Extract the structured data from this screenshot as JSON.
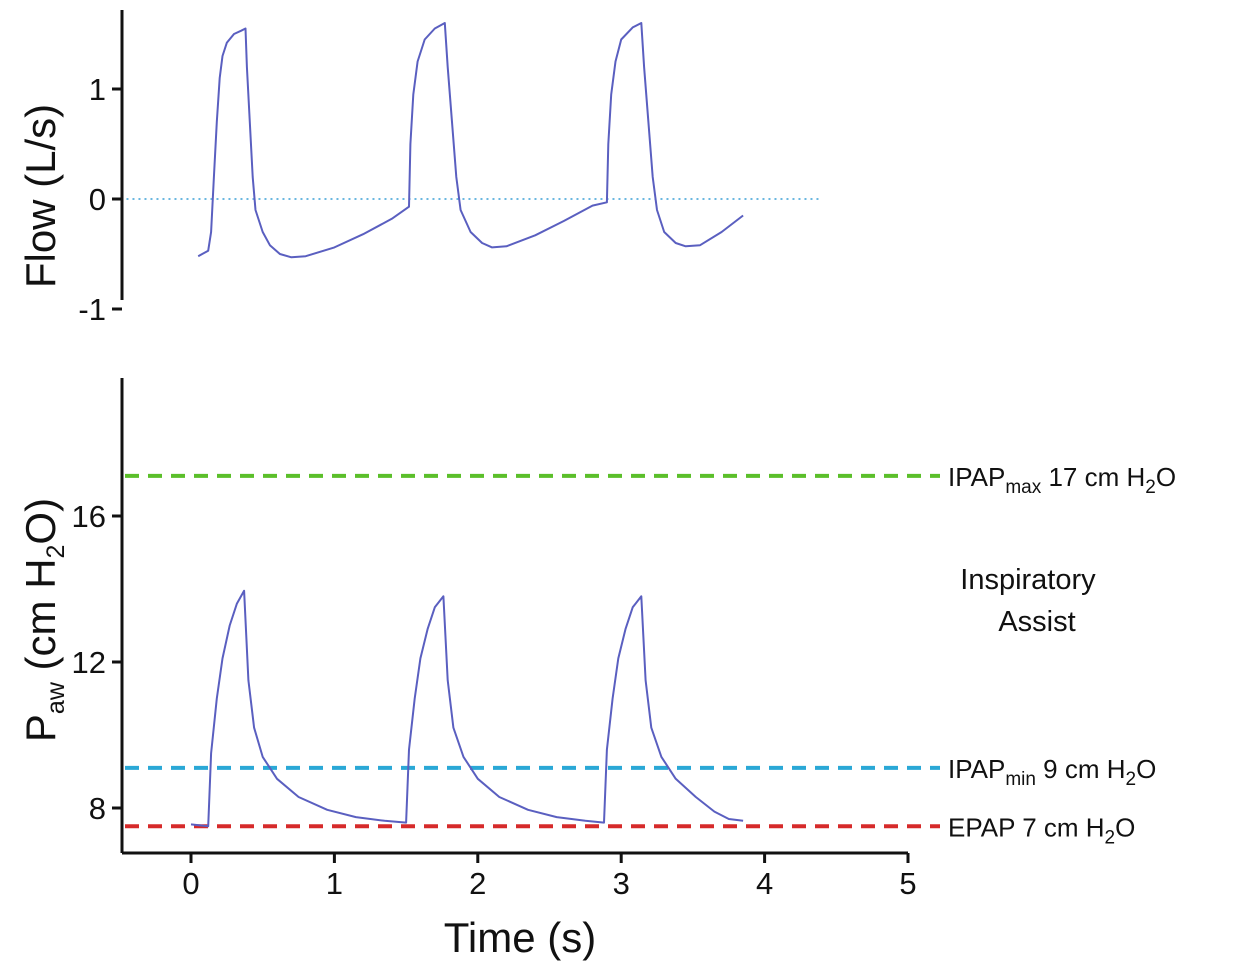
{
  "chart_data": [
    {
      "type": "line",
      "panel": "top",
      "title": "",
      "xlabel": "",
      "ylabel": "Flow (L/s)",
      "xlim": [
        -0.5,
        5
      ],
      "ylim": [
        -1,
        1.7
      ],
      "yticks": [
        {
          "value": 1,
          "label": "1"
        },
        {
          "value": 0,
          "label": "0"
        },
        {
          "value": -1,
          "label": "-1"
        }
      ],
      "reference_lines": [
        {
          "y": 0,
          "color": "#3a9fd6",
          "style": "dotted",
          "x_range": [
            -0.45,
            4.4
          ]
        }
      ],
      "series": [
        {
          "color": "#5a5fc0",
          "points": [
            [
              0.05,
              -0.52
            ],
            [
              0.12,
              -0.47
            ],
            [
              0.14,
              -0.3
            ],
            [
              0.16,
              0.2
            ],
            [
              0.18,
              0.7
            ],
            [
              0.2,
              1.1
            ],
            [
              0.22,
              1.3
            ],
            [
              0.25,
              1.42
            ],
            [
              0.3,
              1.5
            ],
            [
              0.35,
              1.53
            ],
            [
              0.38,
              1.55
            ],
            [
              0.39,
              1.2
            ],
            [
              0.41,
              0.7
            ],
            [
              0.43,
              0.2
            ],
            [
              0.45,
              -0.1
            ],
            [
              0.5,
              -0.3
            ],
            [
              0.55,
              -0.42
            ],
            [
              0.62,
              -0.5
            ],
            [
              0.7,
              -0.53
            ],
            [
              0.8,
              -0.52
            ],
            [
              1.0,
              -0.44
            ],
            [
              1.2,
              -0.32
            ],
            [
              1.4,
              -0.18
            ],
            [
              1.52,
              -0.07
            ],
            [
              1.53,
              0.5
            ],
            [
              1.55,
              0.95
            ],
            [
              1.58,
              1.25
            ],
            [
              1.63,
              1.45
            ],
            [
              1.7,
              1.55
            ],
            [
              1.77,
              1.6
            ],
            [
              1.79,
              1.2
            ],
            [
              1.82,
              0.7
            ],
            [
              1.85,
              0.2
            ],
            [
              1.88,
              -0.1
            ],
            [
              1.95,
              -0.3
            ],
            [
              2.03,
              -0.4
            ],
            [
              2.1,
              -0.44
            ],
            [
              2.2,
              -0.43
            ],
            [
              2.4,
              -0.33
            ],
            [
              2.6,
              -0.2
            ],
            [
              2.8,
              -0.06
            ],
            [
              2.9,
              -0.03
            ],
            [
              2.91,
              0.5
            ],
            [
              2.93,
              0.95
            ],
            [
              2.96,
              1.25
            ],
            [
              3.0,
              1.45
            ],
            [
              3.08,
              1.56
            ],
            [
              3.14,
              1.6
            ],
            [
              3.16,
              1.2
            ],
            [
              3.19,
              0.7
            ],
            [
              3.22,
              0.2
            ],
            [
              3.25,
              -0.1
            ],
            [
              3.3,
              -0.3
            ],
            [
              3.38,
              -0.4
            ],
            [
              3.45,
              -0.43
            ],
            [
              3.55,
              -0.42
            ],
            [
              3.7,
              -0.3
            ],
            [
              3.85,
              -0.15
            ]
          ]
        }
      ]
    },
    {
      "type": "line",
      "panel": "bottom",
      "title": "",
      "xlabel": "Time (s)",
      "ylabel": "Paw (cm H2O)",
      "ylabel_parts": {
        "base": "P",
        "sub": "aw",
        "rest_a": " (cm H",
        "sub2": "2",
        "rest_b": "O)"
      },
      "xlim": [
        -0.5,
        5
      ],
      "ylim": [
        7.3,
        19.5
      ],
      "xticks": [
        {
          "value": 0,
          "label": "0"
        },
        {
          "value": 1,
          "label": "1"
        },
        {
          "value": 2,
          "label": "2"
        },
        {
          "value": 3,
          "label": "3"
        },
        {
          "value": 4,
          "label": "4"
        },
        {
          "value": 5,
          "label": "5"
        }
      ],
      "yticks": [
        {
          "value": 16,
          "label": "16"
        },
        {
          "value": 12,
          "label": "12"
        },
        {
          "value": 8,
          "label": "8"
        }
      ],
      "reference_lines": [
        {
          "y": 17.1,
          "color": "#5bbf2a",
          "style": "dashed",
          "label_parts": {
            "main": "IPAP",
            "sub": "max",
            "rest": " 17 cm H",
            "sub2": "2",
            "end": "O"
          }
        },
        {
          "y": 9.1,
          "color": "#2aa8d6",
          "style": "dashed",
          "label_parts": {
            "main": "IPAP",
            "sub": "min",
            "rest": " 9 cm H",
            "sub2": "2",
            "end": "O"
          }
        },
        {
          "y": 7.5,
          "color": "#d62a2a",
          "style": "dashed",
          "label_parts": {
            "main": "EPAP",
            "sub": "",
            "rest": " 7 cm H",
            "sub2": "2",
            "end": "O"
          }
        }
      ],
      "annotation": [
        "Inspiratory",
        "Assist"
      ],
      "series": [
        {
          "color": "#5a5fc0",
          "points": [
            [
              0.0,
              7.55
            ],
            [
              0.12,
              7.5
            ],
            [
              0.14,
              9.5
            ],
            [
              0.18,
              11.0
            ],
            [
              0.22,
              12.1
            ],
            [
              0.27,
              13.0
            ],
            [
              0.32,
              13.6
            ],
            [
              0.37,
              13.95
            ],
            [
              0.4,
              11.5
            ],
            [
              0.44,
              10.2
            ],
            [
              0.5,
              9.4
            ],
            [
              0.6,
              8.8
            ],
            [
              0.75,
              8.3
            ],
            [
              0.95,
              7.95
            ],
            [
              1.15,
              7.75
            ],
            [
              1.35,
              7.65
            ],
            [
              1.5,
              7.6
            ],
            [
              1.52,
              9.6
            ],
            [
              1.56,
              11.0
            ],
            [
              1.6,
              12.1
            ],
            [
              1.65,
              12.9
            ],
            [
              1.7,
              13.5
            ],
            [
              1.76,
              13.8
            ],
            [
              1.79,
              11.5
            ],
            [
              1.83,
              10.2
            ],
            [
              1.9,
              9.4
            ],
            [
              2.0,
              8.8
            ],
            [
              2.15,
              8.3
            ],
            [
              2.35,
              7.95
            ],
            [
              2.55,
              7.75
            ],
            [
              2.75,
              7.65
            ],
            [
              2.88,
              7.6
            ],
            [
              2.9,
              9.6
            ],
            [
              2.94,
              11.0
            ],
            [
              2.98,
              12.1
            ],
            [
              3.03,
              12.9
            ],
            [
              3.08,
              13.5
            ],
            [
              3.14,
              13.8
            ],
            [
              3.17,
              11.5
            ],
            [
              3.21,
              10.2
            ],
            [
              3.28,
              9.4
            ],
            [
              3.38,
              8.8
            ],
            [
              3.52,
              8.3
            ],
            [
              3.65,
              7.9
            ],
            [
              3.75,
              7.7
            ],
            [
              3.85,
              7.65
            ]
          ]
        }
      ]
    }
  ]
}
